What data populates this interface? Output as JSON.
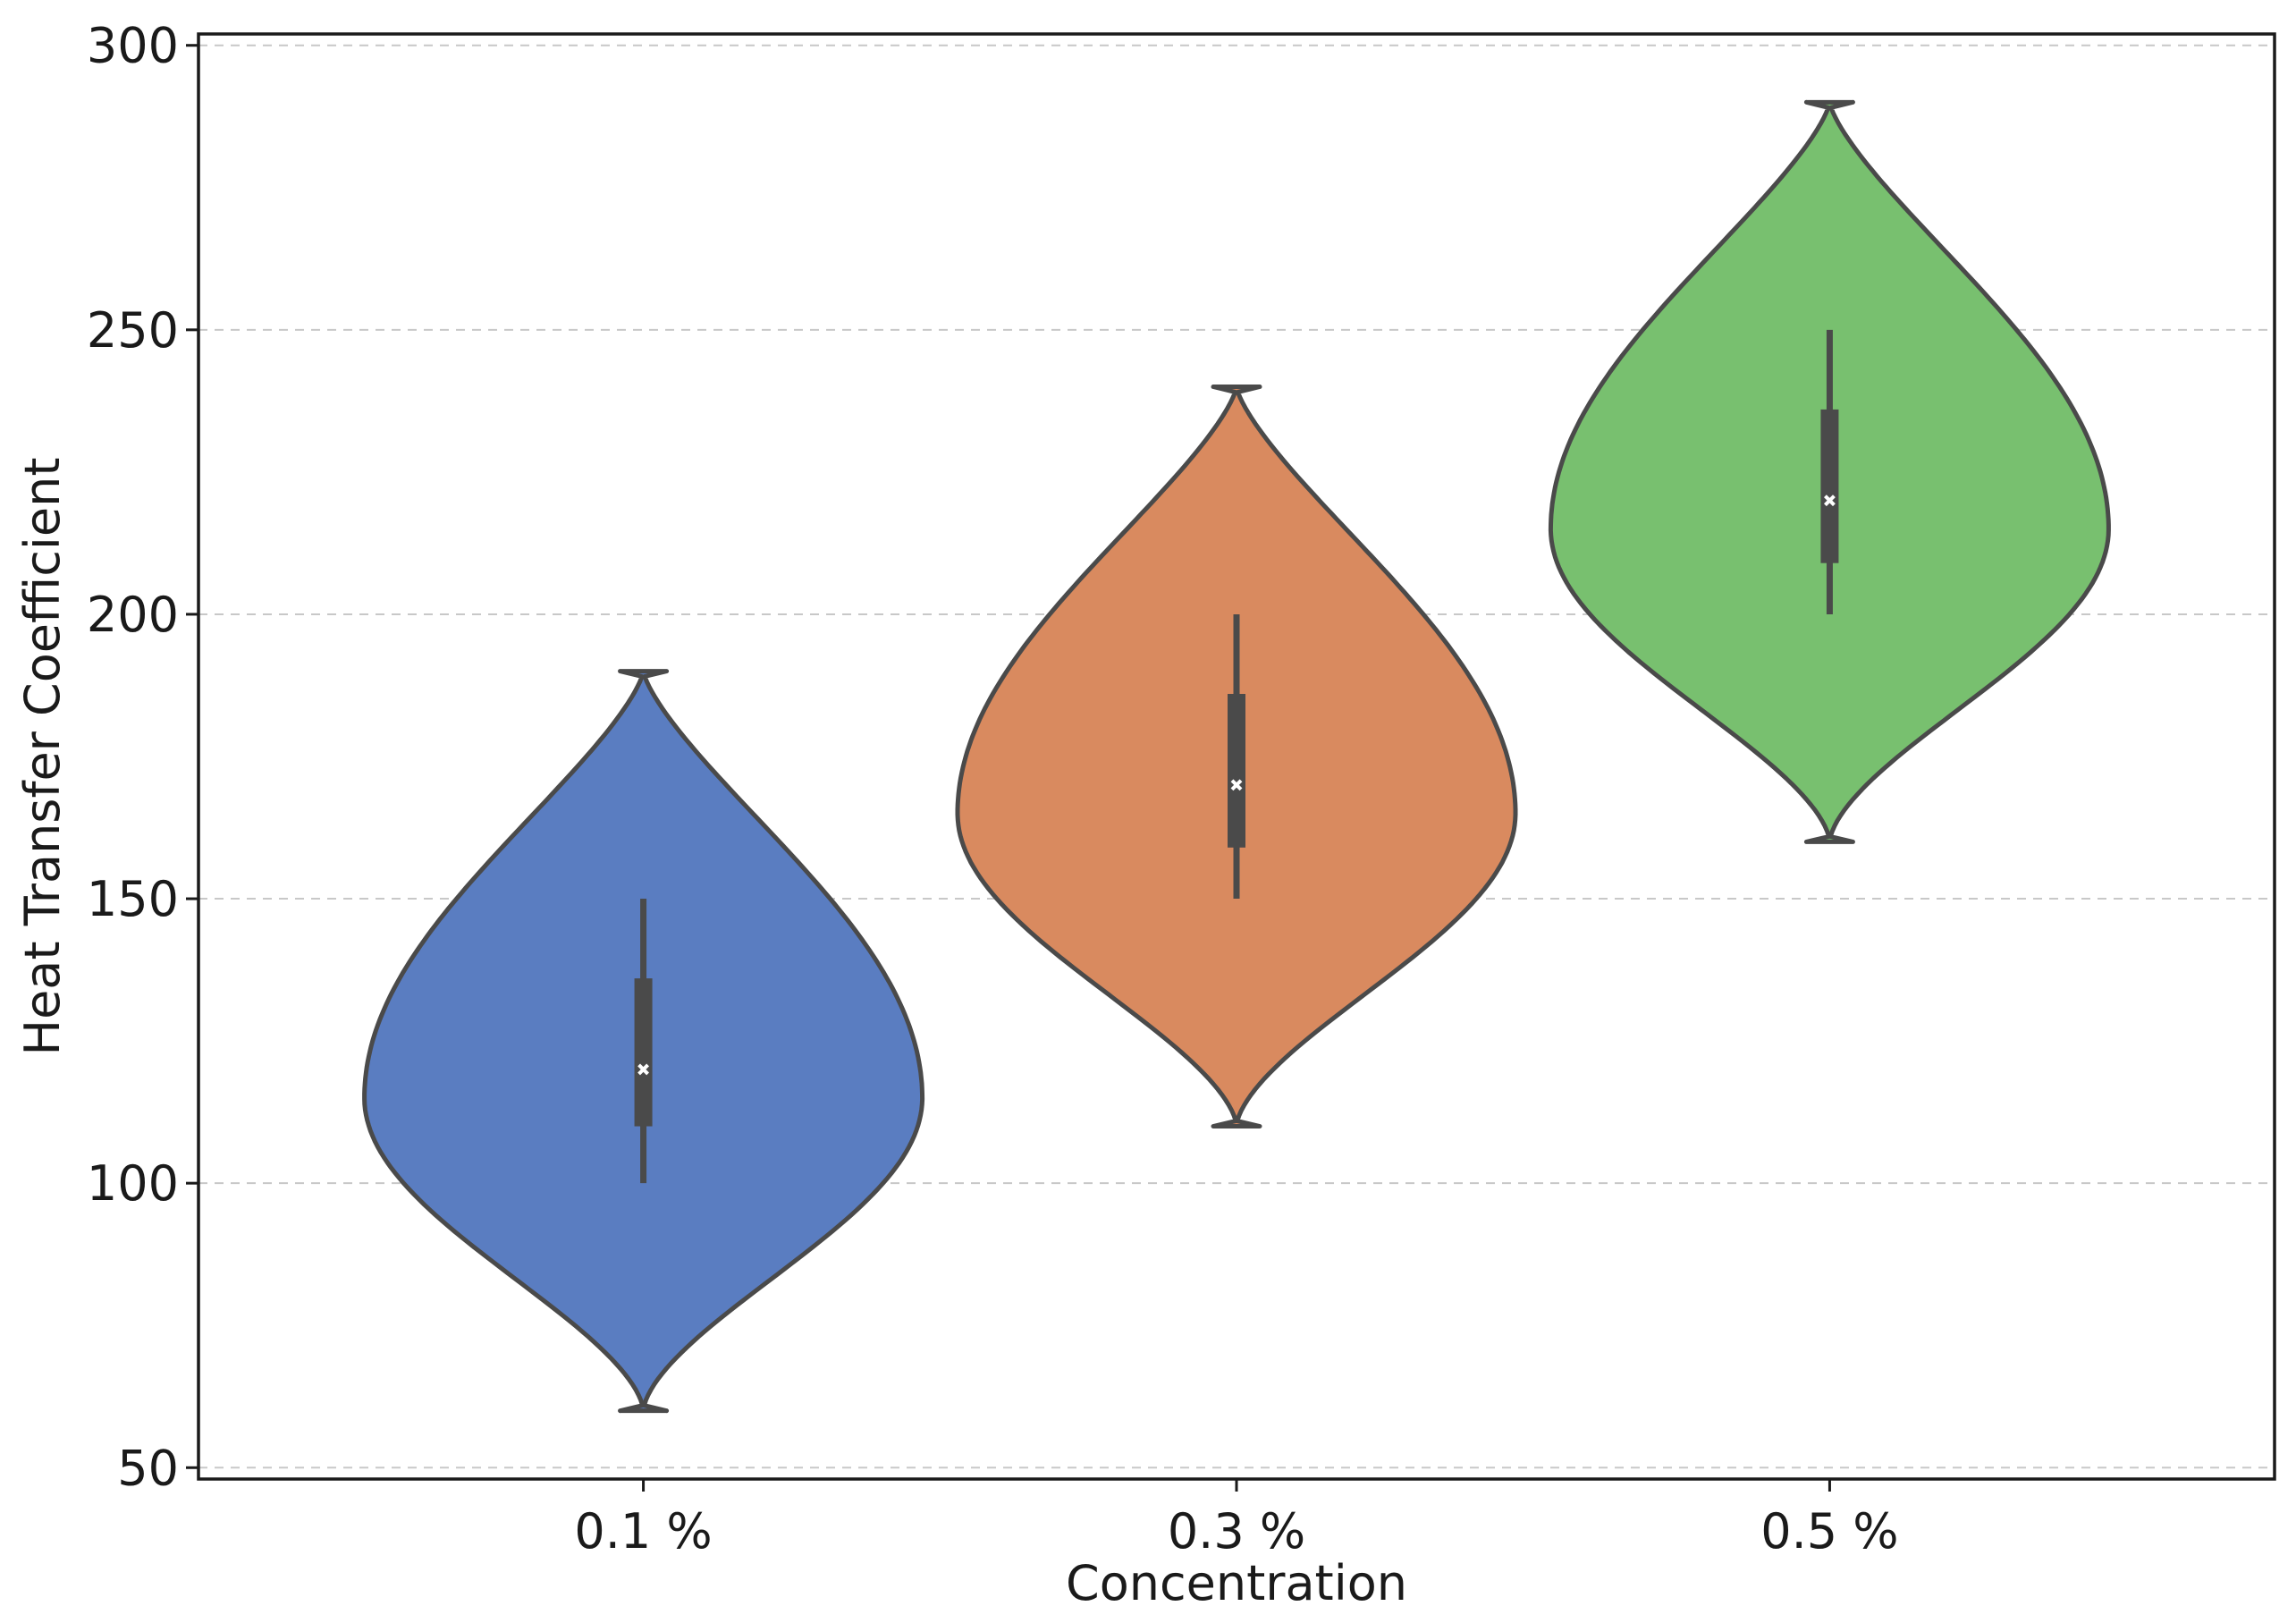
{
  "chart_data": {
    "type": "violin",
    "title": "",
    "xlabel": "Concentration",
    "ylabel": "Heat Transfer Coefficient",
    "ylim": [
      48,
      302
    ],
    "yticks": [
      50,
      100,
      150,
      200,
      250,
      300
    ],
    "grid": "horizontal-dashed",
    "categories": [
      "0.1 %",
      "0.3 %",
      "0.5 %"
    ],
    "series": [
      {
        "name": "0.1 %",
        "color": "#5A7DC1",
        "min": 60,
        "max": 190,
        "mode": 115,
        "median": 120,
        "q1": 110,
        "q3": 136,
        "whisker_low": 100,
        "whisker_high": 150
      },
      {
        "name": "0.3 %",
        "color": "#D98A5F",
        "min": 110,
        "max": 240,
        "mode": 165,
        "median": 170,
        "q1": 159,
        "q3": 186,
        "whisker_low": 150,
        "whisker_high": 200
      },
      {
        "name": "0.5 %",
        "color": "#78C06F",
        "min": 160,
        "max": 290,
        "mode": 215,
        "median": 220,
        "q1": 209,
        "q3": 236,
        "whisker_low": 200,
        "whisker_high": 250
      }
    ]
  }
}
